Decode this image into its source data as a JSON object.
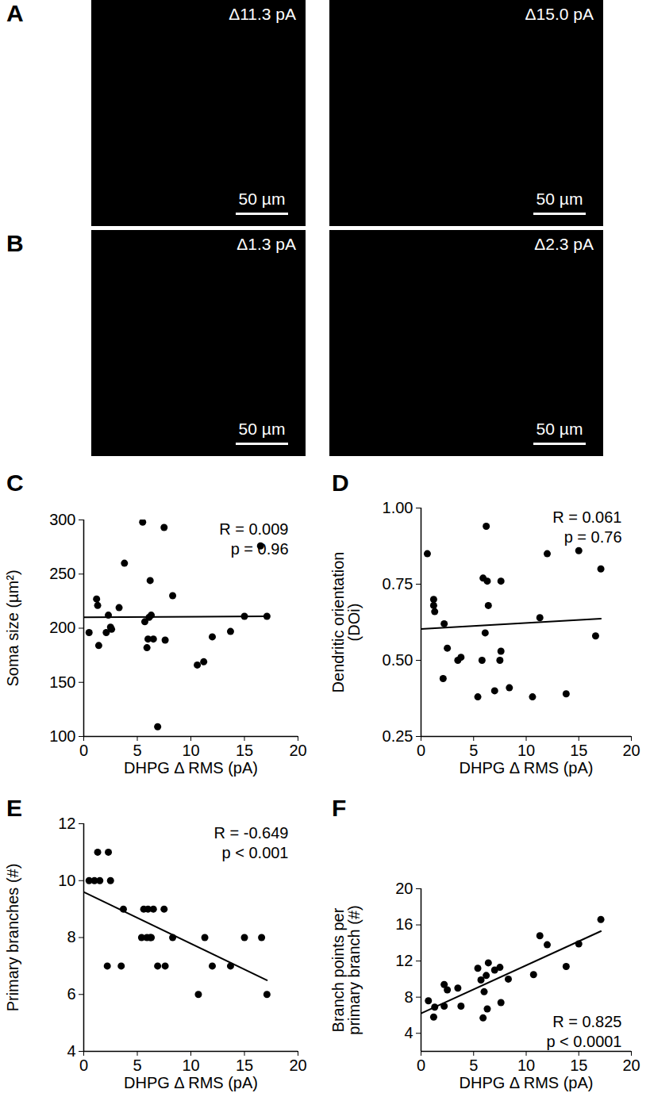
{
  "panels": [
    {
      "title": "A",
      "images": [
        {
          "label": "Δ11.3 pA",
          "scale_bar": "50 µm"
        },
        {
          "label": "Δ15.0 pA",
          "scale_bar": "50 µm"
        }
      ]
    },
    {
      "title": "B",
      "images": [
        {
          "label": "Δ1.3 pA",
          "scale_bar": "50 µm"
        },
        {
          "label": "Δ2.3 pA",
          "scale_bar": "50 µm"
        }
      ]
    }
  ],
  "chart_data": [
    {
      "type": "scatter",
      "title": "C",
      "x_label": "DHPG Δ RMS (pA)",
      "y_label": "Soma size (µm²)",
      "xlim": [
        0,
        20
      ],
      "xticks": [
        0,
        5,
        10,
        15,
        20
      ],
      "ylim": [
        100,
        300
      ],
      "yticks": [
        100,
        150,
        200,
        250,
        300
      ],
      "color": "#000000",
      "marker": "circle",
      "grid": false,
      "x": [
        0.5,
        1.2,
        1.3,
        1.4,
        2.1,
        2.3,
        2.5,
        2.6,
        3.3,
        3.8,
        5.5,
        5.7,
        5.9,
        6.0,
        6.1,
        6.2,
        6.3,
        6.5,
        6.9,
        7.5,
        7.6,
        8.3,
        10.6,
        11.2,
        12.0,
        13.7,
        15.0,
        16.5,
        17.1
      ],
      "values": [
        196,
        227,
        221,
        184,
        196,
        212,
        201,
        199,
        219,
        260,
        298,
        206,
        182,
        190,
        210,
        244,
        212,
        190,
        109,
        293,
        189,
        230,
        166,
        169,
        192,
        197,
        211,
        276,
        211
      ],
      "fit": {
        "x": [
          0,
          17.1
        ],
        "values": [
          210,
          211
        ]
      },
      "annotations": [
        "R = 0.009",
        "p = 0.96"
      ]
    },
    {
      "type": "scatter",
      "title": "D",
      "x_label": "DHPG Δ RMS (pA)",
      "y_label": "Dendritic orientation\n(DOi)",
      "xlim": [
        0,
        20
      ],
      "xticks": [
        0,
        5,
        10,
        15,
        20
      ],
      "ylim": [
        0.25,
        1.0
      ],
      "yticks": [
        0.25,
        {
          "value": 0.5,
          "label": "0.50"
        },
        0.75,
        {
          "value": 1.0,
          "label": "1.00"
        }
      ],
      "color": "#000000",
      "marker": "circle",
      "grid": false,
      "x": [
        0.6,
        1.2,
        1.2,
        1.3,
        2.1,
        2.2,
        2.5,
        3.5,
        3.8,
        5.4,
        5.8,
        5.9,
        6.1,
        6.2,
        6.3,
        6.4,
        7.0,
        7.5,
        7.6,
        7.6,
        8.4,
        10.6,
        11.3,
        12.0,
        13.8,
        15.0,
        16.6,
        17.1
      ],
      "values": [
        0.85,
        0.7,
        0.68,
        0.66,
        0.44,
        0.62,
        0.54,
        0.5,
        0.51,
        0.38,
        0.5,
        0.77,
        0.59,
        0.94,
        0.76,
        0.68,
        0.4,
        0.5,
        0.76,
        0.53,
        0.41,
        0.38,
        0.64,
        0.85,
        0.39,
        0.86,
        0.58,
        0.8
      ],
      "fit": {
        "x": [
          0,
          17.1
        ],
        "values": [
          0.603,
          0.637
        ]
      },
      "annotations": [
        "R = 0.061",
        "p = 0.76"
      ]
    },
    {
      "type": "scatter",
      "title": "E",
      "x_label": "DHPG Δ RMS (pA)",
      "y_label": "Primary branches (#)",
      "xlim": [
        0,
        20
      ],
      "xticks": [
        0,
        5,
        10,
        15,
        20
      ],
      "ylim": [
        4,
        12
      ],
      "yticks": [
        4,
        6,
        8,
        10,
        12
      ],
      "color": "#000000",
      "marker": "circle",
      "grid": false,
      "x": [
        0.5,
        1.0,
        1.3,
        1.5,
        2.2,
        2.3,
        2.5,
        3.5,
        3.7,
        5.4,
        5.6,
        5.9,
        6.0,
        6.2,
        6.3,
        6.5,
        6.9,
        7.5,
        7.6,
        8.3,
        10.7,
        11.3,
        12.0,
        13.7,
        15.0,
        16.6,
        17.1
      ],
      "values": [
        10,
        10,
        11,
        10,
        7,
        11,
        10,
        7,
        9,
        8,
        9,
        8,
        9,
        8,
        8,
        9,
        7,
        9,
        7,
        8,
        6,
        8,
        7,
        7,
        8,
        8,
        6
      ],
      "fit": {
        "x": [
          0,
          17.1
        ],
        "values": [
          9.6,
          6.5
        ]
      },
      "annotations": [
        "R = -0.649",
        "p < 0.001"
      ]
    },
    {
      "type": "scatter",
      "title": "F",
      "x_label": "DHPG Δ RMS (pA)",
      "y_label": "Branch points per\nprimary branch (#)",
      "xlim": [
        0,
        20
      ],
      "xticks": [
        0,
        5,
        10,
        15,
        20
      ],
      "ylim": [
        2,
        20
      ],
      "yticks": [
        4,
        8,
        12,
        16,
        20
      ],
      "color": "#000000",
      "marker": "circle",
      "grid": false,
      "x": [
        0.7,
        1.2,
        1.3,
        2.2,
        2.2,
        2.5,
        3.5,
        3.8,
        5.4,
        5.7,
        5.9,
        6.0,
        6.2,
        6.3,
        6.4,
        7.0,
        7.5,
        7.6,
        8.3,
        10.7,
        11.3,
        12.0,
        13.8,
        15.0,
        17.1
      ],
      "values": [
        7.6,
        5.8,
        6.9,
        7.0,
        9.4,
        8.8,
        9.0,
        7.0,
        11.2,
        9.9,
        5.7,
        8.6,
        10.4,
        6.7,
        11.8,
        11.0,
        11.3,
        7.4,
        10.0,
        10.5,
        14.8,
        13.8,
        11.4,
        13.9,
        16.6
      ],
      "fit": {
        "x": [
          0,
          17.1
        ],
        "values": [
          6.2,
          15.3
        ]
      },
      "annotations": [
        "R = 0.825",
        "p < 0.0001"
      ]
    }
  ]
}
